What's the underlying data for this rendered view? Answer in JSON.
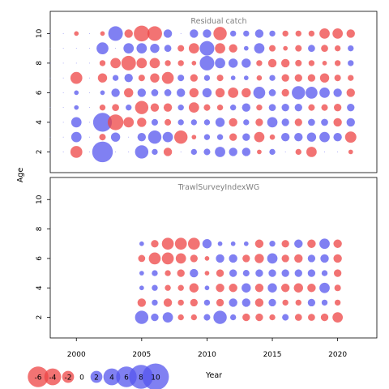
{
  "chart_data": {
    "type": "scatter",
    "subtype": "bubble",
    "ylabel": "Age",
    "xlabel": "Year",
    "xlim": [
      1998,
      2023
    ],
    "ylim": [
      0.6,
      11.5
    ],
    "x_ticks": [
      2000,
      2005,
      2010,
      2015,
      2020
    ],
    "y_ticks": [
      2,
      4,
      6,
      8,
      10
    ],
    "colors": {
      "positive": "#5555ee",
      "negative": "#ee4444"
    },
    "legend": {
      "placement": "bottom-left",
      "items": [
        {
          "label": "-6",
          "value": -6
        },
        {
          "label": "-4",
          "value": -4
        },
        {
          "label": "-2",
          "value": -2
        },
        {
          "label": "0",
          "value": 0
        },
        {
          "label": "2",
          "value": 2
        },
        {
          "label": "4",
          "value": 4
        },
        {
          "label": "6",
          "value": 6
        },
        {
          "label": "8",
          "value": 8
        },
        {
          "label": "10",
          "value": 10
        }
      ]
    },
    "panels": [
      {
        "title": "Residual catch",
        "x_start": 1998,
        "ages": [
          10,
          9,
          8,
          7,
          6,
          5,
          4,
          3,
          2
        ],
        "years": [
          1998,
          1999,
          2000,
          2001,
          2002,
          2003,
          2004,
          2005,
          2006,
          2007,
          2008,
          2009,
          2010,
          2011,
          2012,
          2013,
          2014,
          2015,
          2016,
          2017,
          2018,
          2019,
          2020,
          2021
        ],
        "residuals": [
          [
            0,
            0,
            -0.3,
            0,
            -0.3,
            3,
            -1,
            -3.5,
            -3,
            1,
            0,
            1,
            1,
            -2.5,
            0.5,
            0.5,
            1,
            0.5,
            -0.5,
            -0.5,
            -0.5,
            -1.5,
            -1.5,
            -1
          ],
          [
            0,
            0,
            0,
            0,
            2,
            0,
            1.5,
            1.5,
            1.2,
            0.7,
            -0.6,
            -1.5,
            3,
            -1.5,
            -1,
            0.3,
            1.5,
            -0.6,
            -0.3,
            -0.6,
            0.7,
            -0.7,
            -0.5,
            0.5
          ],
          [
            0,
            0,
            0,
            0,
            -0.5,
            -1.5,
            -3,
            -1.5,
            -1.5,
            -0.5,
            -0.5,
            -0.3,
            3,
            1.5,
            1.2,
            1.2,
            -0.5,
            -1,
            -1,
            -0.6,
            -0.5,
            -0.3,
            -0.5,
            0.5
          ],
          [
            0,
            0,
            -2,
            0,
            -1.2,
            0.5,
            1,
            -0.6,
            -1.2,
            -2,
            0.6,
            -0.8,
            0.5,
            -0.6,
            0.3,
            0.3,
            -0.4,
            0.5,
            -0.8,
            -0.8,
            -0.8,
            -1.2,
            -0.6,
            -0.5
          ],
          [
            0,
            0,
            0.3,
            0,
            0.3,
            1,
            -1.2,
            1,
            0.7,
            0.7,
            1,
            -1.2,
            1.2,
            -1.2,
            -1.5,
            -1.2,
            2,
            0.7,
            -0.8,
            2.5,
            2,
            1.5,
            1,
            -1
          ],
          [
            0,
            0,
            0.3,
            0,
            -0.5,
            -0.7,
            0.5,
            -2.5,
            -1,
            -1,
            0.5,
            -1.5,
            -0.6,
            -0.5,
            0.5,
            1,
            -0.5,
            0.7,
            0.8,
            0.8,
            -0.6,
            -0.6,
            -0.8,
            0.8
          ],
          [
            0,
            0,
            1.5,
            0,
            5,
            -3.5,
            -1.5,
            -1.2,
            0.6,
            -0.6,
            0.5,
            0.5,
            0.5,
            1.2,
            -1,
            0.5,
            -0.8,
            1.5,
            0.8,
            -0.8,
            0.7,
            0.7,
            -1,
            1
          ],
          [
            0,
            0,
            1.5,
            0,
            -0.6,
            1.2,
            0,
            1,
            2.5,
            1.5,
            -2.5,
            -0.3,
            0.5,
            0.5,
            -0.8,
            0.8,
            -1.5,
            -0.4,
            1,
            1,
            1.2,
            1.5,
            1,
            -1.8
          ],
          [
            0,
            0,
            -2,
            0,
            6,
            0,
            0,
            2.5,
            0.5,
            -1,
            0,
            0.5,
            0.6,
            1.5,
            1,
            1,
            -0.3,
            0.5,
            0,
            -0.5,
            -1.5,
            0,
            0,
            -0.3
          ]
        ]
      },
      {
        "title": "TrawlSurveyIndexWG",
        "x_start": 2005,
        "ages": [
          7,
          6,
          5,
          4,
          3,
          2
        ],
        "years": [
          2005,
          2006,
          2007,
          2008,
          2009,
          2010,
          2011,
          2012,
          2013,
          2014,
          2015,
          2016,
          2017,
          2018,
          2019,
          2020
        ],
        "residuals": [
          [
            0.3,
            -0.8,
            -2,
            -2,
            -2,
            1.2,
            0.3,
            0.3,
            0.3,
            -1,
            0.5,
            -0.8,
            1,
            -1,
            1.5,
            -1
          ],
          [
            -0.7,
            -2,
            -2,
            -1.5,
            -0.8,
            -0.3,
            1,
            1,
            -0.8,
            -1.2,
            1.5,
            -0.8,
            -1,
            0.8,
            1,
            -1
          ],
          [
            0.3,
            0.5,
            -0.5,
            -0.8,
            1,
            -0.3,
            -0.8,
            0.8,
            0.6,
            0.8,
            0.8,
            0.8,
            0.8,
            0.8,
            0.5,
            -0.8
          ],
          [
            0.3,
            0.5,
            -0.5,
            -0.5,
            -1.2,
            0.3,
            -1,
            -1,
            1.2,
            -1,
            1.2,
            -1,
            -1.2,
            -1,
            1.5,
            -0.6
          ],
          [
            -1,
            0.5,
            -1,
            -0.5,
            -0.8,
            0.5,
            -0.8,
            1,
            1,
            -1,
            0.8,
            -0.5,
            -0.5,
            0.8,
            0.5,
            -0.5
          ],
          [
            2.5,
            0.8,
            1.5,
            -0.5,
            -0.5,
            0.6,
            2.5,
            0.5,
            -0.8,
            -0.8,
            -0.5,
            0.6,
            -0.7,
            -0.7,
            -0.8,
            -1.5
          ]
        ]
      }
    ]
  }
}
